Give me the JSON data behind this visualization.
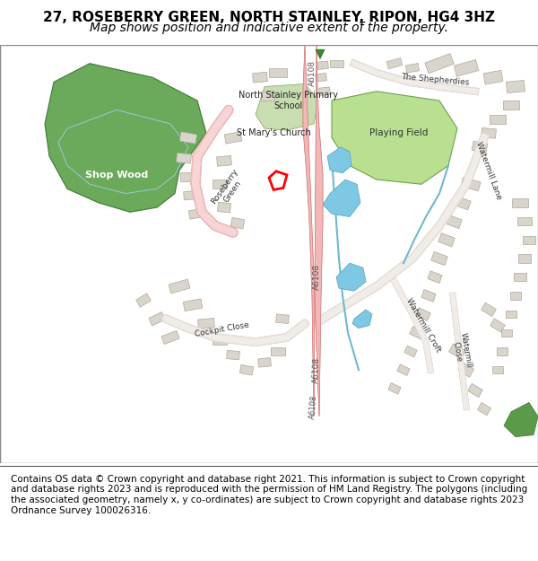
{
  "title": "27, ROSEBERRY GREEN, NORTH STAINLEY, RIPON, HG4 3HZ",
  "subtitle": "Map shows position and indicative extent of the property.",
  "footer": "Contains OS data © Crown copyright and database right 2021. This information is subject to Crown copyright and database rights 2023 and is reproduced with the permission of HM Land Registry. The polygons (including the associated geometry, namely x, y co-ordinates) are subject to Crown copyright and database rights 2023 Ordnance Survey 100026316.",
  "bg_color": "#ffffff",
  "map_bg": "#f7f4f0",
  "road_color": "#f4c6c6",
  "road_outline": "#e8a0a0",
  "building_color": "#d9d4cc",
  "building_outline": "#b0a898",
  "green_area_color": "#6aaa5a",
  "green_area_outline": "#4a8a3a",
  "playing_field_color": "#a8d890",
  "water_color": "#7ec8e3",
  "plot_color": "#ff0000",
  "plot_fill": "#ffffff",
  "wood_label": "Shop Wood",
  "school_label": "North Stainley Primary\nSchool",
  "church_label": "St Mary's Church",
  "field_label": "Playing Field",
  "road_labels": [
    "A6108",
    "A6108",
    "A6108",
    "Roseberry\nGreen",
    "Watermill Lane",
    "Watermill Croft",
    "Watermill Close",
    "Cockpit Close",
    "The Shepherdies"
  ],
  "title_fontsize": 11,
  "subtitle_fontsize": 10,
  "footer_fontsize": 7.5
}
